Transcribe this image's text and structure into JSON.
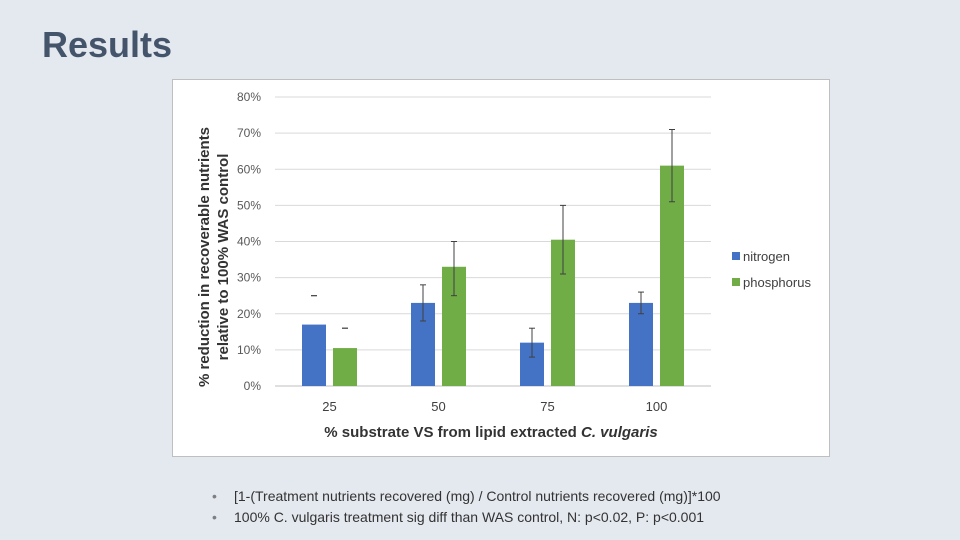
{
  "slide": {
    "title": "Results"
  },
  "chart_data": {
    "type": "bar",
    "title": "",
    "xlabel": "% substrate VS from lipid extracted C. vulgaris",
    "xlabel_plain": "% substrate VS from lipid extracted ",
    "xlabel_italic": "C. vulgaris",
    "ylabel_line1": "% reduction in recoverable nutrients",
    "ylabel_line2": "relative to 100% WAS control",
    "categories": [
      "25",
      "50",
      "75",
      "100"
    ],
    "yticks": [
      "0%",
      "10%",
      "20%",
      "30%",
      "40%",
      "50%",
      "60%",
      "70%",
      "80%"
    ],
    "ylim": [
      0,
      0.8
    ],
    "grid": true,
    "legend_position": "right",
    "series": [
      {
        "name": "nitrogen",
        "color": "#4472c4",
        "values": [
          0.17,
          0.23,
          0.12,
          0.23
        ],
        "err_low": [
          0.25,
          0.18,
          0.08,
          0.2
        ],
        "err_high": [
          0.25,
          0.28,
          0.16,
          0.26
        ]
      },
      {
        "name": "phosphorus",
        "color": "#70ad47",
        "values": [
          0.105,
          0.33,
          0.405,
          0.61
        ],
        "err_low": [
          0.16,
          0.25,
          0.31,
          0.51
        ],
        "err_high": [
          0.16,
          0.4,
          0.5,
          0.71
        ]
      }
    ]
  },
  "notes": [
    "[1-(Treatment nutrients recovered (mg) / Control nutrients recovered (mg)]*100",
    "100% C. vulgaris treatment sig diff than WAS control, N: p<0.02, P: p<0.001"
  ],
  "bullet_glyph": "•"
}
